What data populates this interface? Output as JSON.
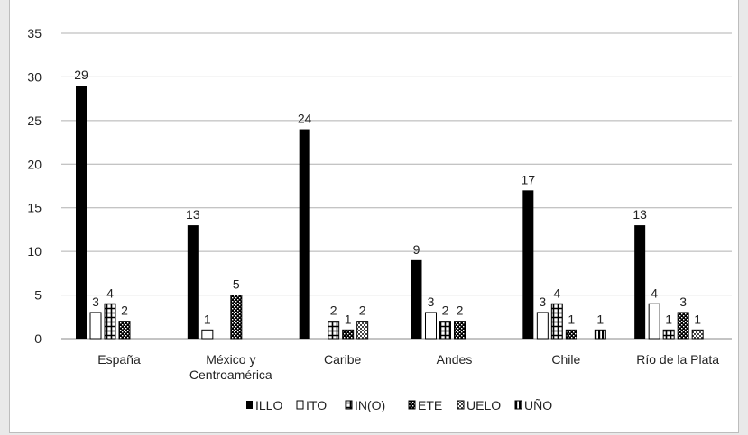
{
  "chart_data": {
    "type": "bar",
    "title": "",
    "xlabel": "",
    "ylabel": "",
    "ylim": [
      0,
      35
    ],
    "yticks": [
      "0",
      "5",
      "10",
      "15",
      "20",
      "25",
      "30",
      "35"
    ],
    "grid": true,
    "legend_position": "bottom",
    "categories": [
      [
        "España"
      ],
      [
        "México y",
        "Centroamérica"
      ],
      [
        "Caribe"
      ],
      [
        "Andes"
      ],
      [
        "Chile"
      ],
      [
        "Río de la Plata"
      ]
    ],
    "series": [
      {
        "name": "ILLO",
        "pattern": "solid",
        "values": [
          29,
          13,
          24,
          9,
          17,
          13
        ]
      },
      {
        "name": "ITO",
        "pattern": "white",
        "values": [
          3,
          1,
          0,
          3,
          3,
          4
        ]
      },
      {
        "name": "IN(O)",
        "pattern": "grid",
        "values": [
          4,
          0,
          2,
          2,
          4,
          1
        ]
      },
      {
        "name": "ETE",
        "pattern": "dots",
        "values": [
          2,
          5,
          1,
          2,
          1,
          3
        ]
      },
      {
        "name": "UELO",
        "pattern": "checker",
        "values": [
          0,
          0,
          2,
          0,
          0,
          1
        ]
      },
      {
        "name": "UÑO",
        "pattern": "vstripes",
        "values": [
          0,
          0,
          0,
          0,
          1,
          0
        ]
      }
    ],
    "colors": {
      "bar": "#000000",
      "grid": "#b0b0b0",
      "text": "#222222"
    }
  }
}
